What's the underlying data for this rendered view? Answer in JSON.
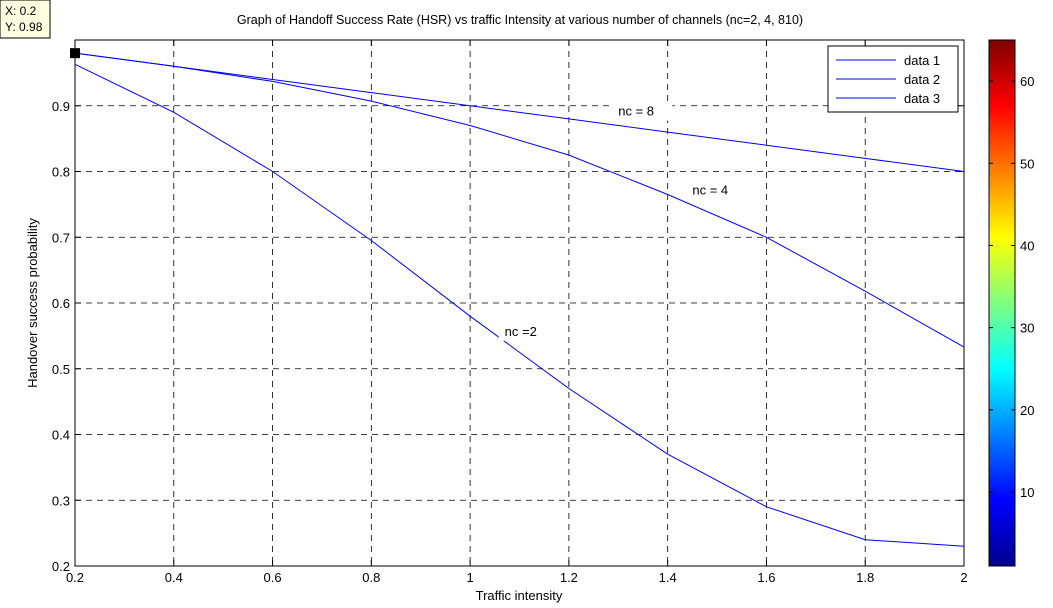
{
  "chart_data": {
    "type": "line",
    "title": "Graph of Handoff Success Rate (HSR) vs traffic Intensity at various number of channels (nc=2, 4, 810)",
    "xlabel": "Traffic intensity",
    "ylabel": "Handover success probability",
    "xlim": [
      0.2,
      2
    ],
    "ylim": [
      0.2,
      1
    ],
    "xticks": [
      0.2,
      0.4,
      0.6,
      0.8,
      1,
      1.2,
      1.4,
      1.6,
      1.8,
      2
    ],
    "xtick_labels": [
      "0.2",
      "0.4",
      "0.6",
      "0.8",
      "1",
      "1.2",
      "1.4",
      "1.6",
      "1.8",
      "2"
    ],
    "yticks": [
      0.2,
      0.3,
      0.4,
      0.5,
      0.6,
      0.7,
      0.8,
      0.9
    ],
    "ytick_labels": [
      "0.2",
      "0.3",
      "0.4",
      "0.5",
      "0.6",
      "0.7",
      "0.8",
      "0.9"
    ],
    "grid": true,
    "legend_position": "top-right",
    "line_color": "#0000ff",
    "series": [
      {
        "name": "data 1",
        "x": [
          0.2,
          0.4,
          0.6,
          0.8,
          1.0,
          1.2,
          1.4,
          1.6,
          1.8,
          2.0
        ],
        "y": [
          0.98,
          0.96,
          0.94,
          0.92,
          0.9,
          0.88,
          0.86,
          0.84,
          0.82,
          0.8
        ]
      },
      {
        "name": "data 2",
        "x": [
          0.2,
          0.4,
          0.6,
          0.8,
          1.0,
          1.2,
          1.4,
          1.6,
          1.8,
          2.0
        ],
        "y": [
          0.98,
          0.96,
          0.937,
          0.907,
          0.87,
          0.825,
          0.765,
          0.7,
          0.618,
          0.533
        ]
      },
      {
        "name": "data 3",
        "x": [
          0.2,
          0.4,
          0.6,
          0.8,
          1.0,
          1.2,
          1.4,
          1.6,
          1.8,
          2.0
        ],
        "y": [
          0.963,
          0.89,
          0.8,
          0.695,
          0.58,
          0.47,
          0.37,
          0.29,
          0.24,
          0.23
        ]
      }
    ],
    "annotations": [
      {
        "text": "nc = 8",
        "x": 1.3,
        "y": 0.885
      },
      {
        "text": "nc = 4",
        "x": 1.45,
        "y": 0.765
      },
      {
        "text": "nc =2",
        "x": 1.07,
        "y": 0.55
      }
    ],
    "datatip": {
      "x_text": "X: 0.2",
      "y_text": "Y: 0.98",
      "x": 0.2,
      "y": 0.98
    },
    "colorbar": {
      "colormap": "jet",
      "range": [
        1,
        65
      ],
      "tick_values": [
        10,
        20,
        30,
        40,
        50,
        60
      ],
      "tick_labels": [
        "10",
        "20",
        "30",
        "40",
        "50",
        "60"
      ]
    }
  }
}
